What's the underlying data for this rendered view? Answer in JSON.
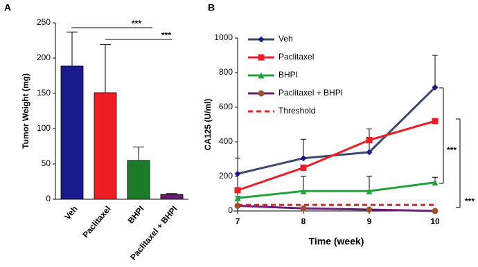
{
  "chart_data": [
    {
      "type": "bar",
      "panel": "A",
      "ylabel": "Tumor Weight (mg)",
      "categories": [
        "Veh",
        "Paclitaxel",
        "BHPI",
        "Paclitaxel + BHPI"
      ],
      "values": [
        189,
        151,
        55,
        7
      ],
      "errors": [
        48,
        68,
        19,
        1
      ],
      "colors": [
        "#1a1a8c",
        "#ee1c24",
        "#1e7b2a",
        "#6a1b6e"
      ],
      "ylim": [
        0,
        250
      ],
      "yticks": [
        0,
        50,
        100,
        150,
        200,
        250
      ],
      "annotations": [
        "***",
        "***"
      ]
    },
    {
      "type": "line",
      "panel": "B",
      "xlabel": "Time (week)",
      "ylabel": "CA125 (U/ml)",
      "x": [
        7,
        8,
        9,
        10
      ],
      "xlim": [
        7,
        10
      ],
      "xticks": [
        7,
        8,
        9,
        10
      ],
      "ylim": [
        0,
        1000
      ],
      "yticks": [
        0,
        200,
        400,
        600,
        800,
        1000
      ],
      "legend": "upper-left",
      "series": [
        {
          "name": "Veh",
          "color": "#3b4a6b",
          "marker": "diamond",
          "marker_color": "#1a1a8c",
          "values": [
            215,
            305,
            340,
            715
          ],
          "errors": [
            90,
            110,
            135,
            185
          ]
        },
        {
          "name": "Paclitaxel",
          "color": "#ee1c24",
          "marker": "square",
          "marker_color": "#ee1c24",
          "values": [
            120,
            250,
            410,
            520
          ]
        },
        {
          "name": "BHPI",
          "color": "#22a33a",
          "marker": "triangle",
          "marker_color": "#22a33a",
          "values": [
            75,
            115,
            115,
            165
          ],
          "errors": [
            10,
            85,
            85,
            30
          ]
        },
        {
          "name": "Paclitaxel + BHPI",
          "color": "#6a1b7a",
          "marker": "circle",
          "marker_color": "#a0522d",
          "values": [
            30,
            15,
            8,
            0
          ]
        },
        {
          "name": "Threshold",
          "color": "#ee1c24",
          "dash": true,
          "values": [
            35,
            35,
            35,
            35
          ]
        }
      ],
      "annotations": [
        "***",
        "***"
      ]
    }
  ]
}
